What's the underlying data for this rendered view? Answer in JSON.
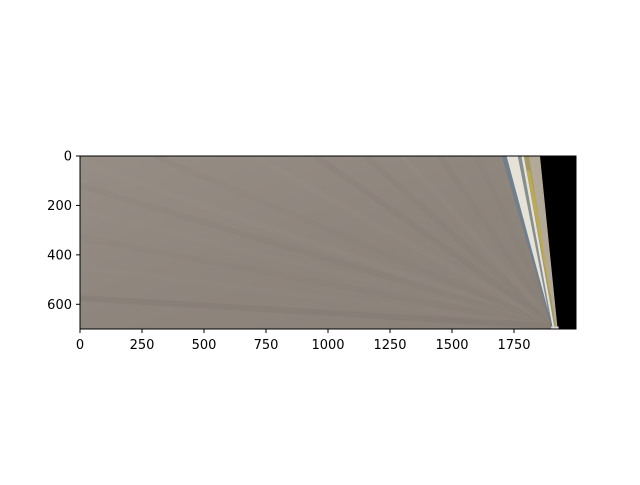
{
  "chart_data": {
    "type": "image",
    "title": "",
    "xlabel": "",
    "ylabel": "",
    "xlim": [
      0,
      2000
    ],
    "ylim": [
      700,
      0
    ],
    "xticks": [
      {
        "value": 0,
        "label": "0"
      },
      {
        "value": 250,
        "label": "250"
      },
      {
        "value": 500,
        "label": "500"
      },
      {
        "value": 750,
        "label": "750"
      },
      {
        "value": 1000,
        "label": "1000"
      },
      {
        "value": 1250,
        "label": "1250"
      },
      {
        "value": 1500,
        "label": "1500"
      },
      {
        "value": 1750,
        "label": "1750"
      }
    ],
    "yticks": [
      {
        "value": 0,
        "label": "0"
      },
      {
        "value": 200,
        "label": "200"
      },
      {
        "value": 400,
        "label": "400"
      },
      {
        "value": 600,
        "label": "600"
      }
    ],
    "grid": false,
    "image_colors": {
      "ground": "#918880",
      "ground_dark": "#7d756d",
      "ground_light": "#a39a91",
      "black_region": "#000000",
      "edge_blue": "#6f7f8c",
      "edge_olive": "#a39a63",
      "edge_white": "#e6e2d8",
      "edge_yellow": "#c9b84a"
    }
  }
}
